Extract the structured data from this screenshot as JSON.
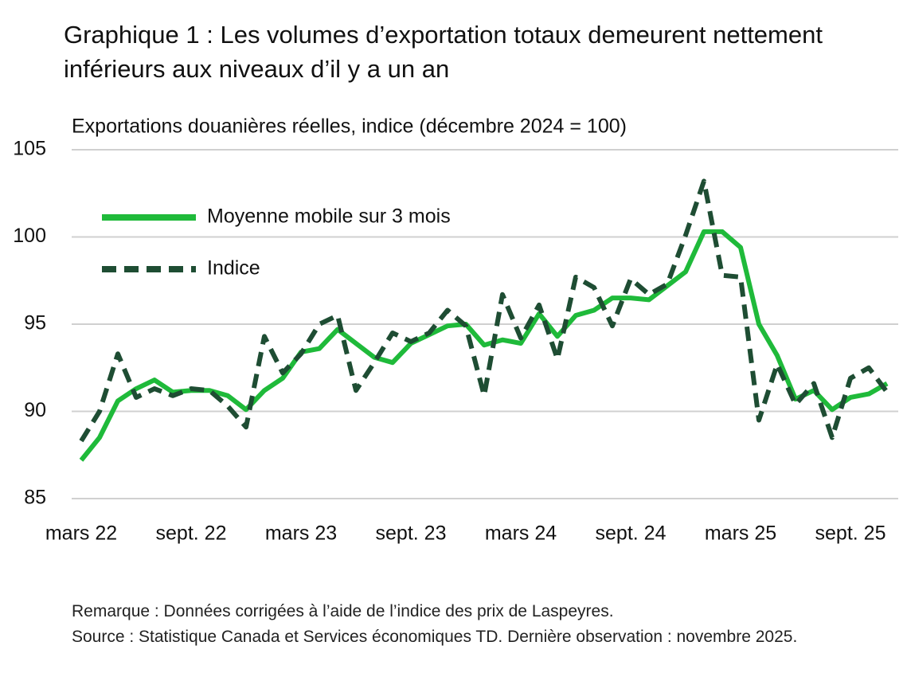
{
  "chart_data": {
    "type": "line",
    "title": "Graphique 1 : Les volumes d’exportation totaux demeurent nettement inférieurs aux niveaux d’il y a un an",
    "subtitle": "Exportations douanières réelles, indice (décembre 2024 = 100)",
    "categories": [
      "mars 22",
      null,
      null,
      null,
      null,
      null,
      "sept. 22",
      null,
      null,
      null,
      null,
      null,
      "mars 23",
      null,
      null,
      null,
      null,
      null,
      "sept. 23",
      null,
      null,
      null,
      null,
      null,
      "mars 24",
      null,
      null,
      null,
      null,
      null,
      "sept. 24",
      null,
      null,
      null,
      null,
      null,
      "mars 25",
      null,
      null,
      null,
      null,
      null,
      "sept. 25",
      null,
      null
    ],
    "series": [
      {
        "name": "Moyenne mobile sur 3 mois",
        "color": "#1fba3a",
        "dash": false,
        "values": [
          87.2,
          88.5,
          90.6,
          91.3,
          91.8,
          91.1,
          91.2,
          91.2,
          90.9,
          90.1,
          91.2,
          91.9,
          93.4,
          93.6,
          94.7,
          93.9,
          93.1,
          92.8,
          93.9,
          94.4,
          94.9,
          95.0,
          93.8,
          94.1,
          93.9,
          95.6,
          94.3,
          95.5,
          95.8,
          96.5,
          96.5,
          96.4,
          97.2,
          98.0,
          100.3,
          100.3,
          99.4,
          95.0,
          93.2,
          90.7,
          91.2,
          90.1,
          90.8,
          91.0,
          91.6
        ]
      },
      {
        "name": "Indice",
        "color": "#1e4d33",
        "dash": true,
        "values": [
          88.3,
          90.0,
          93.3,
          90.8,
          91.3,
          90.9,
          91.3,
          91.2,
          90.3,
          89.1,
          94.3,
          92.2,
          93.3,
          95.0,
          95.5,
          91.2,
          92.8,
          94.5,
          94.0,
          94.5,
          95.8,
          94.9,
          90.9,
          96.7,
          94.2,
          96.1,
          93.0,
          97.7,
          97.1,
          94.9,
          97.6,
          96.7,
          97.3,
          100.1,
          103.2,
          97.8,
          97.7,
          89.5,
          92.7,
          90.4,
          91.6,
          88.5,
          91.9,
          92.5,
          91.1
        ]
      }
    ],
    "ylim": [
      85,
      105
    ],
    "yticks": [
      85,
      90,
      95,
      100,
      105
    ],
    "grid": true,
    "legend": "upper left",
    "notes": [
      "Remarque : Données corrigées à l’aide de l’indice des prix de Laspeyres.",
      "Source : Statistique Canada et Services économiques TD. Dernière observation : novembre 2025."
    ]
  }
}
